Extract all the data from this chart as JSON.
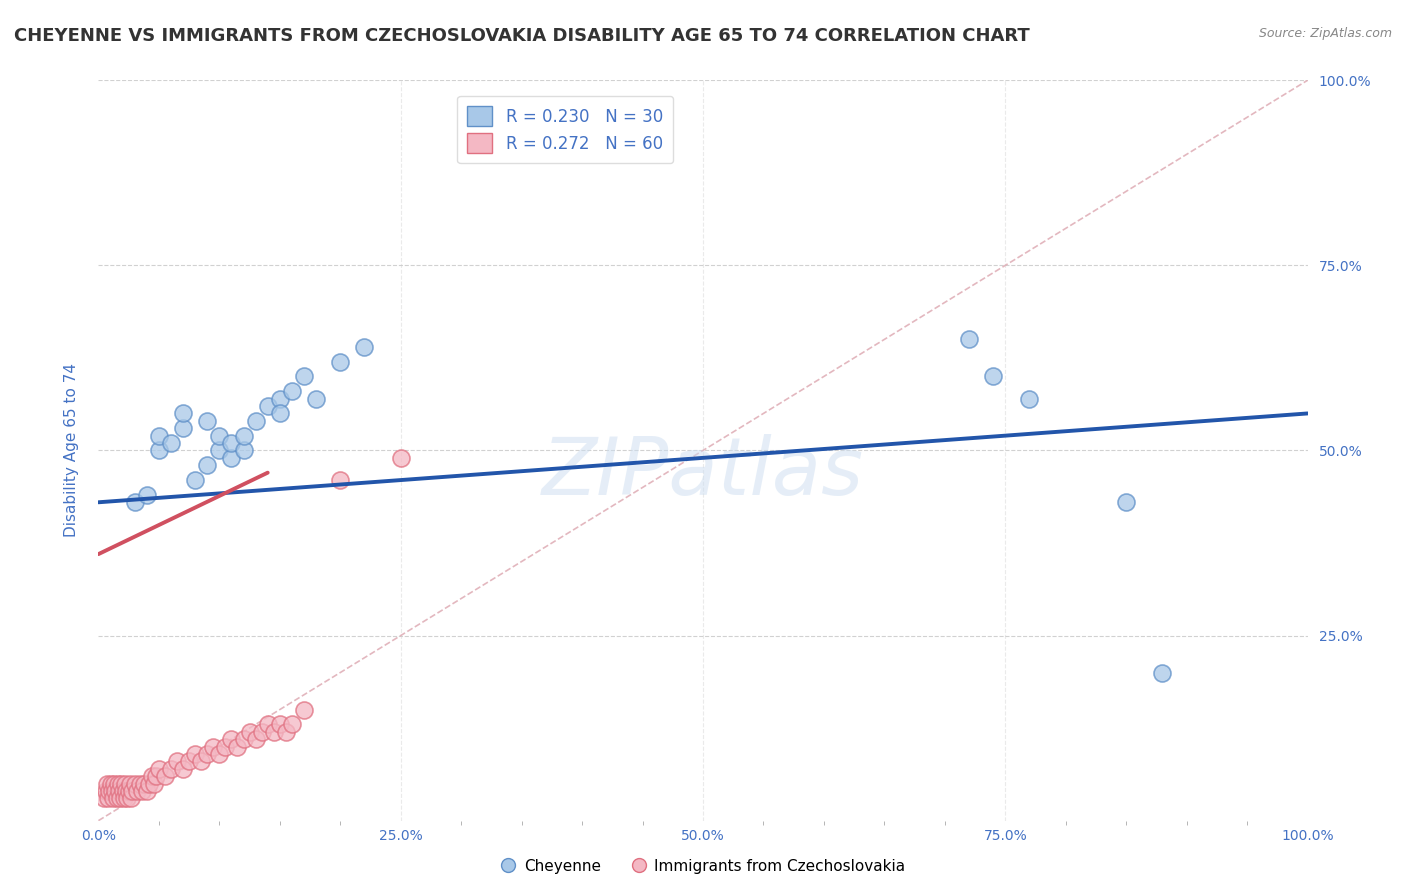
{
  "title": "CHEYENNE VS IMMIGRANTS FROM CZECHOSLOVAKIA DISABILITY AGE 65 TO 74 CORRELATION CHART",
  "source": "Source: ZipAtlas.com",
  "ylabel": "Disability Age 65 to 74",
  "xlim": [
    0,
    1.0
  ],
  "ylim": [
    0,
    1.0
  ],
  "xtick_labels": [
    "0.0%",
    "",
    "",
    "",
    "",
    "25.0%",
    "",
    "",
    "",
    "",
    "50.0%",
    "",
    "",
    "",
    "",
    "75.0%",
    "",
    "",
    "",
    "",
    "100.0%"
  ],
  "xtick_vals": [
    0.0,
    0.05,
    0.1,
    0.15,
    0.2,
    0.25,
    0.3,
    0.35,
    0.4,
    0.45,
    0.5,
    0.55,
    0.6,
    0.65,
    0.7,
    0.75,
    0.8,
    0.85,
    0.9,
    0.95,
    1.0
  ],
  "legend_r_blue": "R = 0.230",
  "legend_n_blue": "N = 30",
  "legend_r_pink": "R = 0.272",
  "legend_n_pink": "N = 60",
  "legend_label_blue": "Cheyenne",
  "legend_label_pink": "Immigrants from Czechoslovakia",
  "blue_color": "#a8c8e8",
  "pink_color": "#f4b8c4",
  "blue_edge_color": "#6090c8",
  "pink_edge_color": "#e07080",
  "blue_line_color": "#2255aa",
  "pink_line_color": "#d05060",
  "diagonal_color": "#e0b0b8",
  "watermark_text": "ZIPatlas",
  "blue_scatter_x": [
    0.03,
    0.04,
    0.05,
    0.05,
    0.06,
    0.07,
    0.07,
    0.08,
    0.09,
    0.09,
    0.1,
    0.1,
    0.11,
    0.11,
    0.12,
    0.12,
    0.13,
    0.14,
    0.15,
    0.15,
    0.16,
    0.17,
    0.18,
    0.2,
    0.22,
    0.72,
    0.74,
    0.77,
    0.85,
    0.88
  ],
  "blue_scatter_y": [
    0.43,
    0.44,
    0.5,
    0.52,
    0.51,
    0.53,
    0.55,
    0.46,
    0.48,
    0.54,
    0.5,
    0.52,
    0.49,
    0.51,
    0.5,
    0.52,
    0.54,
    0.56,
    0.57,
    0.55,
    0.58,
    0.6,
    0.57,
    0.62,
    0.64,
    0.65,
    0.6,
    0.57,
    0.43,
    0.2
  ],
  "pink_scatter_x": [
    0.005,
    0.006,
    0.007,
    0.008,
    0.009,
    0.01,
    0.011,
    0.012,
    0.013,
    0.014,
    0.015,
    0.016,
    0.017,
    0.018,
    0.019,
    0.02,
    0.021,
    0.022,
    0.023,
    0.024,
    0.025,
    0.026,
    0.027,
    0.028,
    0.03,
    0.032,
    0.034,
    0.036,
    0.038,
    0.04,
    0.042,
    0.044,
    0.046,
    0.048,
    0.05,
    0.055,
    0.06,
    0.065,
    0.07,
    0.075,
    0.08,
    0.085,
    0.09,
    0.095,
    0.1,
    0.105,
    0.11,
    0.115,
    0.12,
    0.125,
    0.13,
    0.135,
    0.14,
    0.145,
    0.15,
    0.155,
    0.16,
    0.17,
    0.2,
    0.25
  ],
  "pink_scatter_y": [
    0.03,
    0.04,
    0.05,
    0.03,
    0.04,
    0.05,
    0.04,
    0.03,
    0.05,
    0.04,
    0.03,
    0.05,
    0.04,
    0.03,
    0.05,
    0.04,
    0.03,
    0.05,
    0.04,
    0.03,
    0.04,
    0.05,
    0.03,
    0.04,
    0.05,
    0.04,
    0.05,
    0.04,
    0.05,
    0.04,
    0.05,
    0.06,
    0.05,
    0.06,
    0.07,
    0.06,
    0.07,
    0.08,
    0.07,
    0.08,
    0.09,
    0.08,
    0.09,
    0.1,
    0.09,
    0.1,
    0.11,
    0.1,
    0.11,
    0.12,
    0.11,
    0.12,
    0.13,
    0.12,
    0.13,
    0.12,
    0.13,
    0.15,
    0.46,
    0.49
  ],
  "blue_trend_x": [
    0.0,
    1.0
  ],
  "blue_trend_y": [
    0.43,
    0.55
  ],
  "pink_trend_x": [
    0.0,
    0.14
  ],
  "pink_trend_y": [
    0.36,
    0.47
  ],
  "right_ytick_vals": [
    0.25,
    0.5,
    0.75,
    1.0
  ],
  "right_ytick_labels": [
    "25.0%",
    "50.0%",
    "75.0%",
    "100.0%"
  ],
  "background_color": "#ffffff",
  "grid_color": "#cccccc",
  "title_color": "#333333",
  "axis_color": "#4472c4",
  "title_fontsize": 13,
  "label_fontsize": 11,
  "tick_fontsize": 10
}
